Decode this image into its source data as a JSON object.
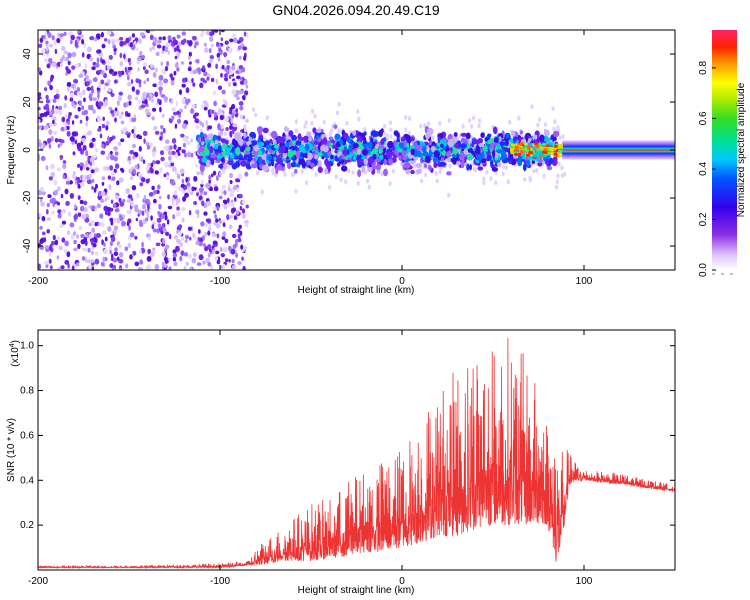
{
  "colors": {
    "axis": "#000000",
    "snr_line": "#ee3333",
    "background": "#ffffff"
  },
  "chart_data": [
    {
      "type": "heatmap",
      "title": "GN04.2026.094.20.49.C19",
      "xlabel": "Height of straight line (km)",
      "ylabel": "Frequency (Hz)",
      "xlim": [
        -200,
        150
      ],
      "ylim": [
        -50,
        50
      ],
      "x_ticks": [
        -200,
        -100,
        0,
        100
      ],
      "x_tick_labels": [
        "-200",
        "-100",
        "0",
        "100"
      ],
      "y_ticks": [
        -40,
        -20,
        0,
        20,
        40
      ],
      "y_tick_labels": [
        "-40",
        "-20",
        "0",
        "20",
        "40"
      ],
      "colorbar": {
        "label": "Normalized spectral amplitude",
        "range": [
          0,
          0.95
        ],
        "ticks": [
          0,
          0.2,
          0.4,
          0.6,
          0.8
        ],
        "tick_labels": [
          "0.0",
          "0.2",
          "0.4",
          "0.6",
          "0.8"
        ]
      },
      "regions": [
        {
          "x": [
            -200,
            -85
          ],
          "f": [
            -50,
            50
          ],
          "amplitude": 0.08,
          "pattern": "broadband noise"
        },
        {
          "x": [
            -112,
            85
          ],
          "f": [
            -12,
            12
          ],
          "amplitude": 0.25,
          "pattern": "scattered energy around 0 Hz"
        },
        {
          "x": [
            60,
            88
          ],
          "f": [
            -4,
            4
          ],
          "amplitude": 0.8,
          "pattern": "strong narrow band"
        },
        {
          "x": [
            88,
            150
          ],
          "f": [
            -4,
            4
          ],
          "amplitude": 0.65,
          "pattern": "smooth band at 0 Hz"
        }
      ]
    },
    {
      "type": "line",
      "xlabel": "Height of straight line (km)",
      "ylabel": "SNR (10 * v/v)",
      "scale_label": "(x10",
      "scale_exponent": "4",
      "scale_suffix": ")",
      "xlim": [
        -200,
        150
      ],
      "ylim": [
        0,
        1.07
      ],
      "x_ticks": [
        -200,
        -100,
        0,
        100
      ],
      "x_tick_labels": [
        "-200",
        "-100",
        "0",
        "100"
      ],
      "y_ticks": [
        0.2,
        0.4,
        0.6,
        0.8,
        1.0
      ],
      "y_tick_labels": [
        "0.2",
        "0.4",
        "0.6",
        "0.8",
        "1.0"
      ],
      "series": [
        {
          "name": "SNR",
          "envelope": {
            "x": [
              -200,
              -150,
              -100,
              -85,
              -78,
              -65,
              -50,
              -40,
              -30,
              -20,
              -10,
              0,
              10,
              20,
              30,
              40,
              50,
              60,
              70,
              80,
              85,
              88,
              92,
              100,
              120,
              150
            ],
            "upper": [
              0.02,
              0.02,
              0.03,
              0.04,
              0.12,
              0.2,
              0.3,
              0.32,
              0.4,
              0.45,
              0.5,
              0.55,
              0.7,
              0.82,
              0.9,
              1.05,
              1.0,
              1.07,
              0.92,
              0.7,
              0.62,
              0.6,
              0.52,
              0.45,
              0.43,
              0.38
            ],
            "lower": [
              0.01,
              0.01,
              0.01,
              0.02,
              0.02,
              0.04,
              0.04,
              0.05,
              0.06,
              0.08,
              0.08,
              0.1,
              0.12,
              0.15,
              0.15,
              0.18,
              0.2,
              0.2,
              0.2,
              0.2,
              0.02,
              0.1,
              0.38,
              0.4,
              0.38,
              0.35
            ]
          }
        }
      ]
    }
  ]
}
